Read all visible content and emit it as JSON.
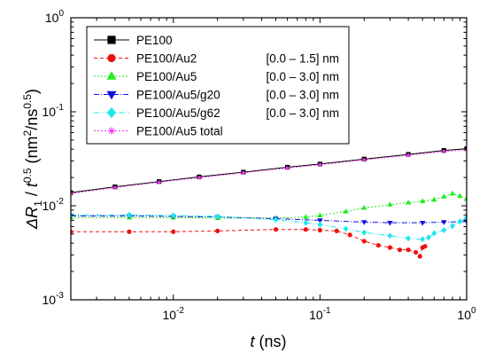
{
  "chart_data": {
    "type": "line",
    "xscale": "log",
    "yscale": "log",
    "xlim": [
      0.002,
      1
    ],
    "ylim": [
      0.001,
      1
    ],
    "xlabel": {
      "italic": "t",
      "rest": " (ns)"
    },
    "ylabel": {
      "pre": "ΔR",
      "sub": "1",
      "mid": " / ",
      "t": "t",
      "sup1": "0.5",
      "units": " (nm",
      "sup2": "2",
      "slash": "/ns",
      "sup3": "0.5",
      "close": ")"
    },
    "xticks": [
      {
        "value": 0.01,
        "base": "10",
        "exp": "-2"
      },
      {
        "value": 0.1,
        "base": "10",
        "exp": "-1"
      },
      {
        "value": 1,
        "base": "10",
        "exp": "0"
      }
    ],
    "yticks": [
      {
        "value": 0.001,
        "base": "10",
        "exp": "-3"
      },
      {
        "value": 0.01,
        "base": "10",
        "exp": "-2"
      },
      {
        "value": 0.1,
        "base": "10",
        "exp": "-1"
      },
      {
        "value": 1,
        "base": "10",
        "exp": "0"
      }
    ],
    "legend_position": "top-left",
    "series": [
      {
        "name": "PE100",
        "range": "",
        "color": "#000000",
        "dash": "",
        "marker": "square",
        "x": [
          0.002,
          0.004,
          0.008,
          0.015,
          0.03,
          0.06,
          0.1,
          0.2,
          0.4,
          0.7,
          1.0
        ],
        "y": [
          0.0138,
          0.0159,
          0.0181,
          0.0203,
          0.0228,
          0.0257,
          0.0278,
          0.0314,
          0.0352,
          0.0388,
          0.0405
        ]
      },
      {
        "name": "PE100/Au2",
        "range": "[0.0 – 1.5] nm",
        "color": "#ee1111",
        "dash": "4,3",
        "marker": "circle",
        "x": [
          0.002,
          0.005,
          0.01,
          0.02,
          0.05,
          0.08,
          0.1,
          0.13,
          0.16,
          0.2,
          0.25,
          0.3,
          0.35,
          0.4,
          0.45,
          0.48,
          0.5,
          0.52
        ],
        "y": [
          0.0053,
          0.0053,
          0.0053,
          0.0054,
          0.0056,
          0.0056,
          0.0055,
          0.0054,
          0.0049,
          0.0042,
          0.0038,
          0.0036,
          0.0034,
          0.0034,
          0.0032,
          0.0029,
          0.0036,
          0.0037
        ]
      },
      {
        "name": "PE100/Au5",
        "range": "[0.0 – 3.0] nm",
        "color": "#22ee22",
        "dash": "2,2",
        "marker": "triangle-up",
        "x": [
          0.002,
          0.005,
          0.01,
          0.02,
          0.05,
          0.08,
          0.1,
          0.15,
          0.2,
          0.3,
          0.4,
          0.5,
          0.6,
          0.7,
          0.8,
          0.9,
          1.0
        ],
        "y": [
          0.0075,
          0.0075,
          0.0075,
          0.0074,
          0.0074,
          0.0076,
          0.0079,
          0.0087,
          0.0095,
          0.0103,
          0.0108,
          0.0112,
          0.0116,
          0.0125,
          0.0135,
          0.0127,
          0.0118
        ]
      },
      {
        "name": "PE100/Au5/g20",
        "range": "[0.0 – 3.0] nm",
        "color": "#1111dd",
        "dash": "6,2,1,2",
        "marker": "triangle-down",
        "x": [
          0.002,
          0.005,
          0.01,
          0.02,
          0.05,
          0.1,
          0.2,
          0.3,
          0.5,
          0.7,
          1.0
        ],
        "y": [
          0.0078,
          0.0078,
          0.0077,
          0.0076,
          0.0073,
          0.007,
          0.0067,
          0.0066,
          0.0066,
          0.0067,
          0.0068
        ]
      },
      {
        "name": "PE100/Au5/g62",
        "range": "[0.0 – 3.0] nm",
        "color": "#22e5ee",
        "dash": "6,2,1,2,1,2",
        "marker": "diamond",
        "x": [
          0.002,
          0.005,
          0.01,
          0.02,
          0.05,
          0.08,
          0.1,
          0.15,
          0.2,
          0.3,
          0.4,
          0.5,
          0.55,
          0.6,
          0.7,
          0.8,
          0.9,
          1.0
        ],
        "y": [
          0.008,
          0.008,
          0.0079,
          0.0077,
          0.0071,
          0.0066,
          0.0063,
          0.0057,
          0.0052,
          0.0048,
          0.0045,
          0.0044,
          0.0046,
          0.0051,
          0.0055,
          0.0061,
          0.0068,
          0.0075
        ]
      },
      {
        "name": "PE100/Au5 total",
        "range": "",
        "color": "#ee33ee",
        "dash": "2,2",
        "marker": "asterisk",
        "x": [
          0.002,
          0.004,
          0.008,
          0.015,
          0.03,
          0.06,
          0.1,
          0.2,
          0.4,
          0.7,
          1.0
        ],
        "y": [
          0.0135,
          0.0156,
          0.0178,
          0.0199,
          0.0224,
          0.0252,
          0.0273,
          0.0308,
          0.0345,
          0.0378,
          0.0395
        ]
      }
    ]
  }
}
